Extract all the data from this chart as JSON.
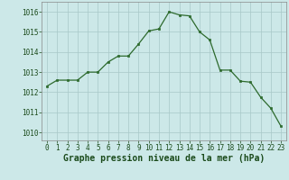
{
  "x": [
    0,
    1,
    2,
    3,
    4,
    5,
    6,
    7,
    8,
    9,
    10,
    11,
    12,
    13,
    14,
    15,
    16,
    17,
    18,
    19,
    20,
    21,
    22,
    23
  ],
  "y": [
    1012.3,
    1012.6,
    1012.6,
    1012.6,
    1013.0,
    1013.0,
    1013.5,
    1013.8,
    1013.8,
    1014.4,
    1015.05,
    1015.15,
    1016.0,
    1015.85,
    1015.8,
    1015.0,
    1014.6,
    1013.1,
    1013.1,
    1012.55,
    1012.5,
    1011.75,
    1011.2,
    1010.3
  ],
  "xlabel": "Graphe pression niveau de la mer (hPa)",
  "ylim_min": 1009.6,
  "ylim_max": 1016.5,
  "yticks": [
    1010,
    1011,
    1012,
    1013,
    1014,
    1015,
    1016
  ],
  "line_color": "#2d6a2d",
  "marker_color": "#2d6a2d",
  "bg_color": "#cce8e8",
  "grid_color": "#a8c8c8",
  "text_color": "#1a4a1a",
  "xlabel_fontsize": 7.0,
  "tick_fontsize": 5.5
}
